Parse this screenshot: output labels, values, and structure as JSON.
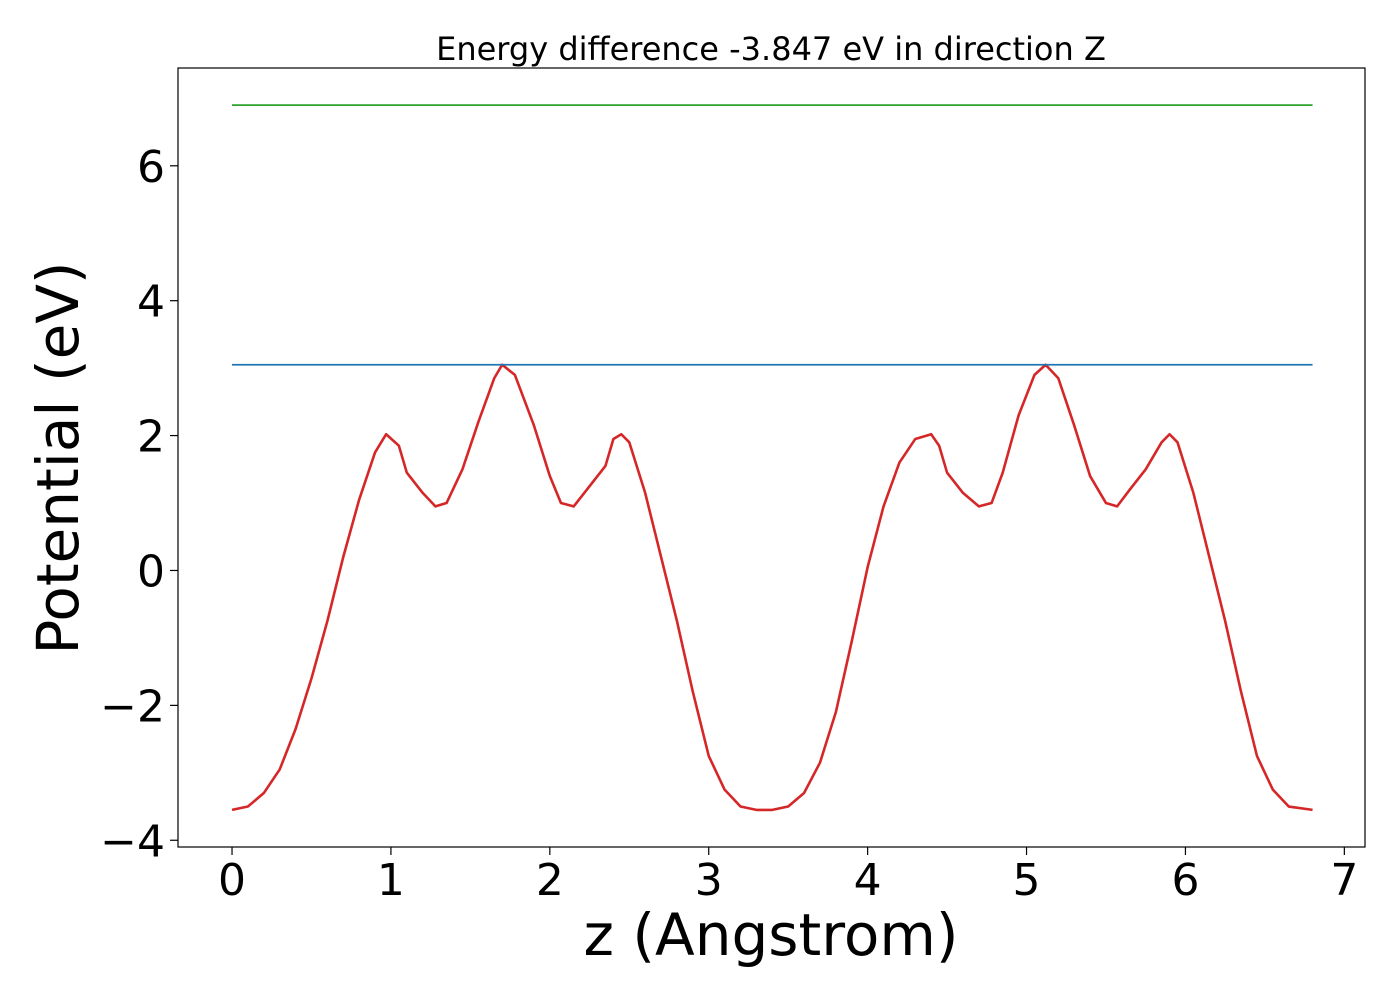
{
  "chart_data": {
    "type": "line",
    "title": "Energy difference -3.847 eV in direction Z",
    "xlabel": "z (Angstrom)",
    "ylabel": "Potential (eV)",
    "xlim": [
      -0.34,
      7.13
    ],
    "ylim": [
      -4.1,
      7.45
    ],
    "xticks": [
      0,
      1,
      2,
      3,
      4,
      5,
      6,
      7
    ],
    "yticks": [
      -4,
      -2,
      0,
      2,
      4,
      6
    ],
    "xtick_labels": [
      "0",
      "1",
      "2",
      "3",
      "4",
      "5",
      "6",
      "7"
    ],
    "ytick_labels": [
      "−4",
      "−2",
      "0",
      "2",
      "4",
      "6"
    ],
    "grid": false,
    "series": [
      {
        "color": "#d62728",
        "x": [
          0,
          0.1,
          0.2,
          0.3,
          0.4,
          0.5,
          0.6,
          0.7,
          0.8,
          0.9,
          0.97,
          1.05,
          1.1,
          1.2,
          1.28,
          1.35,
          1.45,
          1.55,
          1.65,
          1.7,
          1.78,
          1.9,
          2.0,
          2.07,
          2.15,
          2.25,
          2.35,
          2.4,
          2.45,
          2.5,
          2.6,
          2.7,
          2.8,
          2.9,
          3.0,
          3.1,
          3.2,
          3.3,
          3.4,
          3.5,
          3.6,
          3.7,
          3.8,
          3.9,
          4.0,
          4.1,
          4.2,
          4.3,
          4.4,
          4.45,
          4.5,
          4.6,
          4.7,
          4.78,
          4.85,
          4.95,
          5.05,
          5.12,
          5.2,
          5.3,
          5.4,
          5.5,
          5.57,
          5.65,
          5.75,
          5.85,
          5.9,
          5.95,
          6.05,
          6.15,
          6.25,
          6.35,
          6.45,
          6.55,
          6.65,
          6.8
        ],
        "y": [
          -3.55,
          -3.5,
          -3.3,
          -2.95,
          -2.35,
          -1.6,
          -0.75,
          0.2,
          1.05,
          1.75,
          2.02,
          1.85,
          1.45,
          1.15,
          0.95,
          1.0,
          1.5,
          2.2,
          2.85,
          3.05,
          2.9,
          2.15,
          1.4,
          1.0,
          0.95,
          1.25,
          1.55,
          1.95,
          2.02,
          1.9,
          1.15,
          0.2,
          -0.75,
          -1.8,
          -2.75,
          -3.25,
          -3.5,
          -3.55,
          -3.55,
          -3.5,
          -3.3,
          -2.85,
          -2.1,
          -1.05,
          0.05,
          0.95,
          1.6,
          1.95,
          2.02,
          1.85,
          1.45,
          1.15,
          0.95,
          1.0,
          1.45,
          2.3,
          2.9,
          3.05,
          2.85,
          2.15,
          1.4,
          1.0,
          0.95,
          1.2,
          1.5,
          1.9,
          2.02,
          1.9,
          1.15,
          0.2,
          -0.75,
          -1.8,
          -2.75,
          -3.25,
          -3.5,
          -3.55
        ]
      },
      {
        "color": "#1f77b4",
        "x": [
          0,
          6.8
        ],
        "y": [
          3.05,
          3.05
        ]
      },
      {
        "color": "#2ca02c",
        "x": [
          0,
          6.8
        ],
        "y": [
          6.9,
          6.9
        ]
      }
    ]
  }
}
